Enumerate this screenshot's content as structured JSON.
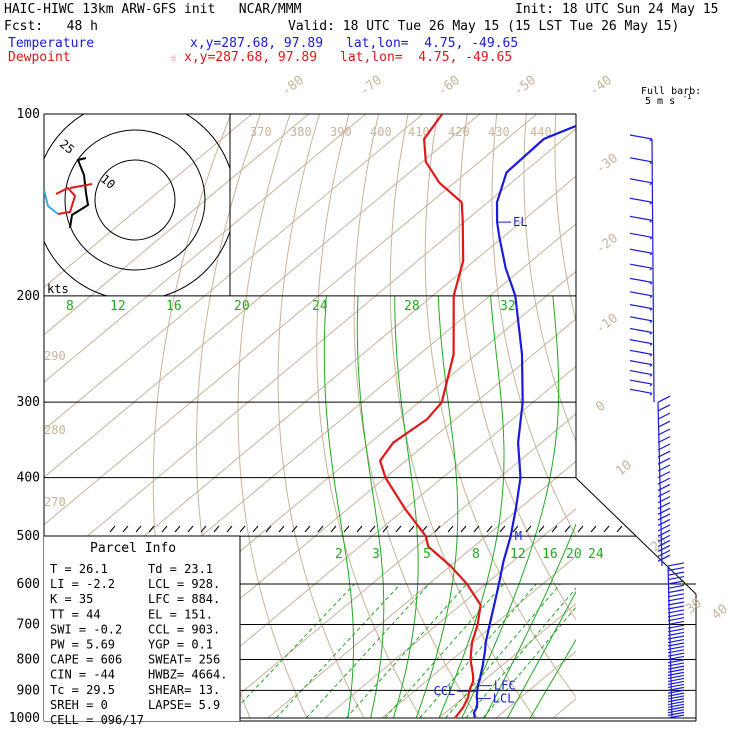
{
  "header": {
    "line1_left": "HAIC-HIWC 13km ARW-GFS init   NCAR/MMM",
    "line1_right": "Init: 18 UTC Sun 24 May 15",
    "fcst": "Fcst:   48 h",
    "valid": "Valid: 18 UTC Tue 26 May 15 (15 LST Tue 26 May 15)",
    "temperature_label": "Temperature",
    "temperature_xy": "x,y=287.68, 97.89",
    "temperature_latlon": "lat,lon=  4.75, -49.65",
    "dewpoint_label": "Dewpoint",
    "dewpoint_xy": "x,y=287.68, 97.89",
    "dewpoint_star": "☆",
    "dewpoint_latlon": "lat,lon=  4.75, -49.65",
    "temperature_color": "#1a1adc",
    "dewpoint_color": "#e01818"
  },
  "barb_legend": {
    "line1": "Full barb:",
    "line2": "5 m s",
    "sup": "-1"
  },
  "hodograph": {
    "ring_labels": [
      "25",
      "10"
    ],
    "units": "kts"
  },
  "parcel_info": {
    "title": "Parcel Info",
    "rows": [
      [
        "T   =   26.1",
        "Td =  23.1"
      ],
      [
        "LI  =   -2.2",
        "LCL =  928."
      ],
      [
        "K   =     35",
        "LFC =  884."
      ],
      [
        "TT  =     44",
        "EL  =  151."
      ],
      [
        "SWI =   -0.2",
        "CCL =  903."
      ],
      [
        "PW  =   5.69",
        "YGP =   0.1"
      ],
      [
        "CAPE =   606",
        "SWEAT=  256"
      ],
      [
        "CIN  =   -44",
        "HWBZ= 4664."
      ],
      [
        "Tc  =   29.5",
        "SHEAR=  13."
      ],
      [
        "SREH =     0",
        "LAPSE=   5.9"
      ],
      [
        "CELL = 096/17",
        ""
      ]
    ]
  },
  "chart_data": {
    "type": "line",
    "chart_kind": "skew-T log-P thermodynamic diagram",
    "y_axis": {
      "scale": "log",
      "unit": "hPa",
      "range": [
        1000,
        100
      ],
      "tick_labels": [
        "100",
        "200",
        "300",
        "400",
        "500",
        "600",
        "700",
        "800",
        "900",
        "1000"
      ]
    },
    "x_axis": {
      "unit": "deg C",
      "isotherm_labels": [
        "-80",
        "-70",
        "-60",
        "-50",
        "-40",
        "-30",
        "-20",
        "-10",
        "0",
        "10",
        "20",
        "30",
        "40"
      ]
    },
    "dry_adiabat_labels": [
      "370",
      "380",
      "390",
      "400",
      "410",
      "420",
      "430",
      "440",
      "290",
      "280",
      "270"
    ],
    "moist_adiabat_labels": [
      "8",
      "12",
      "16",
      "20",
      "24",
      "28",
      "32"
    ],
    "mixing_ratio_labels": [
      "2",
      "3",
      "5",
      "8",
      "12",
      "16",
      "20",
      "24"
    ],
    "series": [
      {
        "name": "Temperature",
        "color": "#1a1adc",
        "pressure": [
          1000,
          980,
          960,
          940,
          925,
          900,
          880,
          860,
          850,
          820,
          800,
          775,
          750,
          700,
          650,
          600,
          550,
          500,
          450,
          400,
          350,
          300,
          250,
          200,
          180,
          160,
          151,
          140,
          125,
          110,
          100
        ],
        "temperature": [
          26.3,
          25.0,
          24.4,
          23.3,
          22.3,
          20.9,
          19.8,
          18.9,
          18.3,
          16.7,
          15.5,
          14.0,
          12.3,
          9.2,
          5.9,
          2.3,
          -1.7,
          -5.7,
          -10.6,
          -16.3,
          -24.1,
          -31.8,
          -42.0,
          -55.5,
          -63.0,
          -70.6,
          -74.2,
          -78.4,
          -83.0,
          -83.5,
          -78.0
        ]
      },
      {
        "name": "Dewpoint",
        "color": "#e01818",
        "pressure": [
          1000,
          960,
          925,
          900,
          870,
          850,
          800,
          750,
          700,
          650,
          600,
          560,
          520,
          500,
          450,
          400,
          375,
          350,
          320,
          300,
          250,
          200,
          175,
          150,
          140,
          130,
          120,
          110,
          100
        ],
        "dewpoint": [
          22.8,
          22.0,
          20.8,
          19.5,
          18.3,
          17.0,
          13.2,
          9.9,
          7.1,
          3.5,
          -3.3,
          -10.0,
          -18.0,
          -20.6,
          -30.1,
          -40.0,
          -44.5,
          -46.0,
          -45.0,
          -46.0,
          -54.0,
          -66.3,
          -72.0,
          -80.6,
          -84.6,
          -92.6,
          -99.4,
          -104.5,
          -106.6
        ]
      }
    ],
    "annotations": [
      {
        "text": "EL",
        "pressure": 151
      },
      {
        "text": "M",
        "pressure": 500
      },
      {
        "text": "LFC",
        "pressure": 884
      },
      {
        "text": "CCL",
        "pressure": 903
      },
      {
        "text": "LCL",
        "pressure": 928
      }
    ],
    "wind_barbs_units": "m s-1",
    "grid": true
  }
}
